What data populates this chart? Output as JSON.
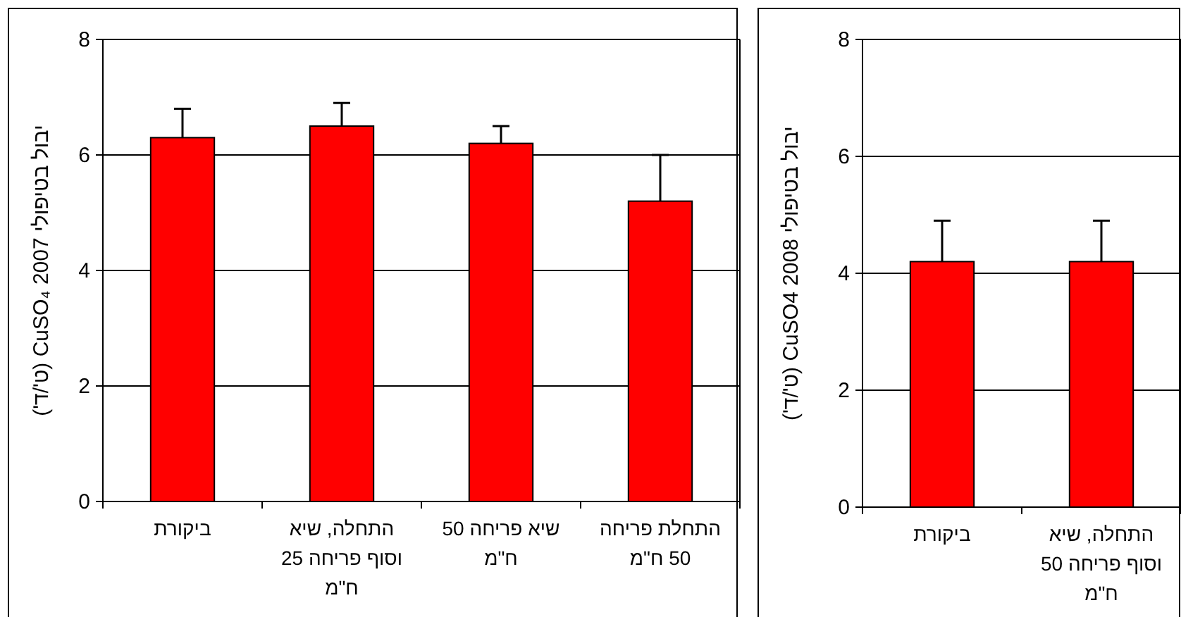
{
  "chart_data": [
    {
      "type": "bar",
      "ylabel": "יבול בטיפולי CuSO₄ 2007 (ט'/ד')",
      "categories": [
        "ביקורת",
        "התחלה, שיא וסוף פריחה 25 ח\"מ",
        "שיא פריחה 50 ח\"מ",
        "התחלת פריחה 50 ח\"מ"
      ],
      "series": [
        {
          "color": "#ff0000",
          "values": [
            6.3,
            6.5,
            6.2,
            5.2
          ],
          "errors": [
            [
              6.3,
              6.8
            ],
            [
              6.5,
              6.9
            ],
            [
              6.2,
              6.5
            ],
            [
              5.2,
              6.0
            ]
          ]
        }
      ],
      "ylim": [
        0,
        8
      ],
      "yticks": [
        0,
        2,
        4,
        6,
        8
      ],
      "grid": "y"
    },
    {
      "type": "bar",
      "ylabel": "יבול בטיפולי CuSO4 2008 (ט'/ד')",
      "categories": [
        "ביקורת",
        "התחלה, שיא וסוף פריחה 50 ח\"מ"
      ],
      "series": [
        {
          "color": "#ff0000",
          "values": [
            4.2,
            4.2
          ],
          "errors": [
            [
              4.2,
              4.9
            ],
            [
              4.2,
              4.9
            ]
          ]
        }
      ],
      "ylim": [
        0,
        8
      ],
      "yticks": [
        0,
        2,
        4,
        6,
        8
      ],
      "grid": "y"
    }
  ]
}
